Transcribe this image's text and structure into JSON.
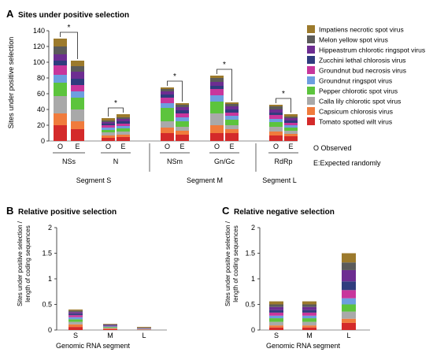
{
  "colors": {
    "Impatiens necrotic spot virus": "#9c7a2c",
    "Melon yellow spot virus": "#5b5b5b",
    "Hippeastrum chlorotic ringspot virus": "#6d2d91",
    "Zucchini lethal chlorosis virus": "#2f3c7e",
    "Groundnut bud necrosis virus": "#c8369c",
    "Groundnut ringspot virus": "#6d9ee0",
    "Pepper chlorotic spot virus": "#5cc43d",
    "Calla lily chlorotic spot virus": "#a9a9a9",
    "Capsicum chlorosis virus": "#f07b3c",
    "Tomato spotted wilt virus": "#d42a2a"
  },
  "legend_extra": [
    "O Observed",
    "E:Expected randomly"
  ],
  "chart_data": [
    {
      "panel": "A",
      "type": "bar",
      "stacked": true,
      "title": "Sites under positive selection",
      "ylabel": "Sites under positive selection",
      "xlabel": "",
      "ylim": [
        0,
        140
      ],
      "yticks": [
        0,
        20,
        40,
        60,
        80,
        100,
        120,
        140
      ],
      "categories": [
        "O",
        "E",
        "O",
        "E",
        "O",
        "E",
        "O",
        "E",
        "O",
        "E"
      ],
      "genes": [
        "NSs",
        "N",
        "NSm",
        "Gn/Gc",
        "RdRp"
      ],
      "segments": [
        "Segment S",
        "Segment M",
        "Segment L"
      ],
      "significance": [
        "*",
        "*",
        "*",
        "*",
        "*"
      ],
      "series": [
        {
          "name": "Tomato spotted wilt virus",
          "values": [
            20,
            15,
            4,
            5,
            10,
            8,
            10,
            10,
            7,
            6
          ]
        },
        {
          "name": "Capsicum chlorosis virus",
          "values": [
            15,
            10,
            3,
            3,
            7,
            5,
            10,
            5,
            5,
            3
          ]
        },
        {
          "name": "Calla lily chlorotic spot virus",
          "values": [
            22,
            15,
            4,
            4,
            8,
            5,
            15,
            5,
            6,
            4
          ]
        },
        {
          "name": "Pepper chlorotic spot virus",
          "values": [
            17,
            15,
            3,
            4,
            17,
            7,
            15,
            7,
            6,
            4
          ]
        },
        {
          "name": "Groundnut ringspot virus",
          "values": [
            10,
            8,
            3,
            3,
            6,
            5,
            8,
            5,
            4,
            3
          ]
        },
        {
          "name": "Groundnut bud necrosis virus",
          "values": [
            12,
            8,
            3,
            3,
            7,
            5,
            8,
            4,
            5,
            3
          ]
        },
        {
          "name": "Zucchini lethal chlorosis virus",
          "values": [
            6,
            8,
            2,
            3,
            4,
            4,
            4,
            4,
            3,
            3
          ]
        },
        {
          "name": "Hippeastrum chlorotic ringspot virus",
          "values": [
            8,
            9,
            2,
            3,
            4,
            4,
            5,
            4,
            4,
            3
          ]
        },
        {
          "name": "Melon yellow spot virus",
          "values": [
            10,
            7,
            2,
            2,
            3,
            3,
            5,
            3,
            4,
            2
          ]
        },
        {
          "name": "Impatiens necrotic spot virus",
          "values": [
            10,
            7,
            3,
            4,
            2,
            2,
            3,
            2,
            2,
            3
          ]
        }
      ]
    },
    {
      "panel": "B",
      "type": "bar",
      "stacked": true,
      "title": "Relative positive selection",
      "ylabel": "Sites under positive selection / length of coding sequences",
      "xlabel": "Genomic RNA segment",
      "ylim": [
        0,
        2
      ],
      "yticks": [
        0,
        0.5,
        1,
        1.5,
        2
      ],
      "categories": [
        "S",
        "M",
        "L"
      ],
      "series": [
        {
          "name": "Tomato spotted wilt virus",
          "values": [
            0.06,
            0.015,
            0.005
          ]
        },
        {
          "name": "Capsicum chlorosis virus",
          "values": [
            0.05,
            0.015,
            0.005
          ]
        },
        {
          "name": "Calla lily chlorotic spot virus",
          "values": [
            0.05,
            0.015,
            0.005
          ]
        },
        {
          "name": "Pepper chlorotic spot virus",
          "values": [
            0.05,
            0.015,
            0.005
          ]
        },
        {
          "name": "Groundnut ringspot virus",
          "values": [
            0.04,
            0.01,
            0.005
          ]
        },
        {
          "name": "Groundnut bud necrosis virus",
          "values": [
            0.04,
            0.01,
            0.005
          ]
        },
        {
          "name": "Zucchini lethal chlorosis virus",
          "values": [
            0.03,
            0.01,
            0.005
          ]
        },
        {
          "name": "Hippeastrum chlorotic ringspot virus",
          "values": [
            0.03,
            0.01,
            0.005
          ]
        },
        {
          "name": "Melon yellow spot virus",
          "values": [
            0.03,
            0.01,
            0.005
          ]
        },
        {
          "name": "Impatiens necrotic spot virus",
          "values": [
            0.02,
            0.01,
            0.015
          ]
        }
      ]
    },
    {
      "panel": "C",
      "type": "bar",
      "stacked": true,
      "title": "Relative negative selection",
      "ylabel": "Sites under positive selection / length of coding sequences",
      "xlabel": "Genomic RNA segment",
      "ylim": [
        0,
        2
      ],
      "yticks": [
        0,
        0.5,
        1,
        1.5,
        2
      ],
      "categories": [
        "S",
        "M",
        "L"
      ],
      "series": [
        {
          "name": "Tomato spotted wilt virus",
          "values": [
            0.05,
            0.05,
            0.14
          ]
        },
        {
          "name": "Capsicum chlorosis virus",
          "values": [
            0.04,
            0.04,
            0.08
          ]
        },
        {
          "name": "Calla lily chlorotic spot virus",
          "values": [
            0.07,
            0.07,
            0.14
          ]
        },
        {
          "name": "Pepper chlorotic spot virus",
          "values": [
            0.07,
            0.07,
            0.14
          ]
        },
        {
          "name": "Groundnut ringspot virus",
          "values": [
            0.05,
            0.05,
            0.12
          ]
        },
        {
          "name": "Groundnut bud necrosis virus",
          "values": [
            0.06,
            0.06,
            0.16
          ]
        },
        {
          "name": "Zucchini lethal chlorosis virus",
          "values": [
            0.05,
            0.05,
            0.17
          ]
        },
        {
          "name": "Hippeastrum chlorotic ringspot virus",
          "values": [
            0.06,
            0.06,
            0.22
          ]
        },
        {
          "name": "Melon yellow spot virus",
          "values": [
            0.05,
            0.05,
            0.15
          ]
        },
        {
          "name": "Impatiens necrotic spot virus",
          "values": [
            0.06,
            0.06,
            0.18
          ]
        }
      ]
    }
  ]
}
